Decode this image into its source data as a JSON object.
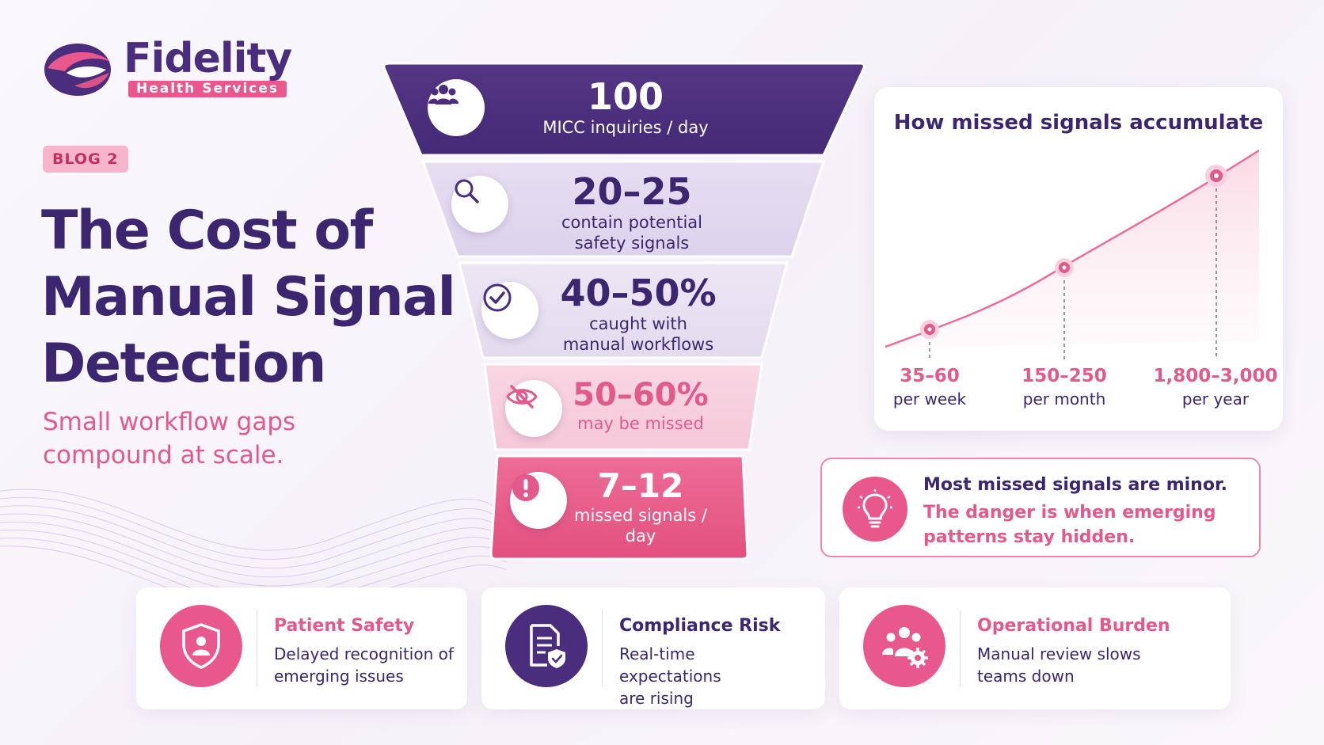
{
  "brand": {
    "name": "Fidelity",
    "sub": "Health Services",
    "colors": {
      "purple": "#4a2d7d",
      "pink": "#e8588c"
    }
  },
  "badge": "BLOG 2",
  "title_lines": [
    "The Cost of",
    "Manual Signal",
    "Detection"
  ],
  "subtitle_lines": [
    "Small workflow gaps",
    "compound at scale."
  ],
  "funnel": [
    {
      "value": "100",
      "label_lines": [
        "MICC inquiries / day"
      ],
      "icon": "users-icon"
    },
    {
      "value": "20–25",
      "label_lines": [
        "contain potential",
        "safety signals"
      ],
      "icon": "search-icon"
    },
    {
      "value": "40–50%",
      "label_lines": [
        "caught with",
        "manual workflows"
      ],
      "icon": "check-circle-icon"
    },
    {
      "value": "50–60%",
      "label_lines": [
        "may be missed"
      ],
      "icon": "eye-off-icon"
    },
    {
      "value": "7–12",
      "label_lines": [
        "missed signals /",
        "day"
      ],
      "icon": "alert-icon"
    }
  ],
  "chart": {
    "title": "How missed signals accumulate",
    "points": [
      {
        "value": "35–60",
        "unit": "per week"
      },
      {
        "value": "150–250",
        "unit": "per month"
      },
      {
        "value": "1,800–3,000",
        "unit": "per year"
      }
    ]
  },
  "insight": {
    "line1": "Most missed signals are minor.",
    "line2_lines": [
      "The danger is when emerging",
      "patterns stay hidden."
    ],
    "icon": "lightbulb-icon"
  },
  "cards": [
    {
      "heading": "Patient Safety",
      "desc_lines": [
        "Delayed recognition of",
        "emerging issues"
      ],
      "icon": "shield-user-icon"
    },
    {
      "heading": "Compliance Risk",
      "desc_lines": [
        "Real-time expectations",
        "are rising"
      ],
      "icon": "document-shield-icon"
    },
    {
      "heading": "Operational Burden",
      "desc_lines": [
        "Manual review slows",
        "teams down"
      ],
      "icon": "team-gear-icon"
    }
  ]
}
